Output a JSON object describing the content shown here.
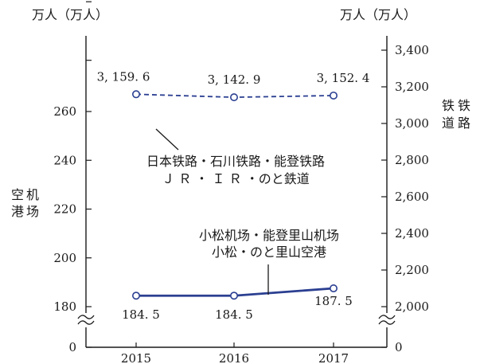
{
  "chart_data": {
    "type": "line",
    "categories": [
      "2015",
      "2016",
      "2017"
    ],
    "left_axis": {
      "unit": "万人（万人）",
      "title_chars": [
        "空",
        "港",
        "机",
        "场"
      ],
      "ticks": [
        "0",
        "180",
        "200",
        "220",
        "240",
        "260"
      ],
      "tick_values": [
        0,
        180,
        200,
        220,
        240,
        260
      ],
      "broken": true
    },
    "right_axis": {
      "unit": "万人（万人）",
      "title_chars": [
        "铁",
        "道",
        "铁",
        "路"
      ],
      "ticks": [
        "0",
        "2,000",
        "2,200",
        "2,400",
        "2,600",
        "2,800",
        "3,000",
        "3,200",
        "3,400"
      ],
      "tick_values": [
        0,
        2000,
        2200,
        2400,
        2600,
        2800,
        3000,
        3200,
        3400
      ],
      "broken": true
    },
    "series": [
      {
        "axis": "right",
        "values": [
          3159.6,
          3142.9,
          3152.4
        ],
        "labels": [
          "3, 159. 6",
          "3, 142. 9",
          "3, 152. 4"
        ],
        "style": "dashed",
        "color": "#2b3f91",
        "annotation": [
          "日本铁路・石川铁路・能登铁路",
          "Ｊ Ｒ ・ Ｉ Ｒ ・のと鉄道"
        ]
      },
      {
        "axis": "left",
        "values": [
          184.5,
          184.5,
          187.5
        ],
        "labels": [
          "184. 5",
          "184. 5",
          "187. 5"
        ],
        "style": "solid",
        "color": "#2b3f91",
        "annotation": [
          "小松机场・能登里山机场",
          "小松・のと里山空港"
        ]
      }
    ]
  }
}
